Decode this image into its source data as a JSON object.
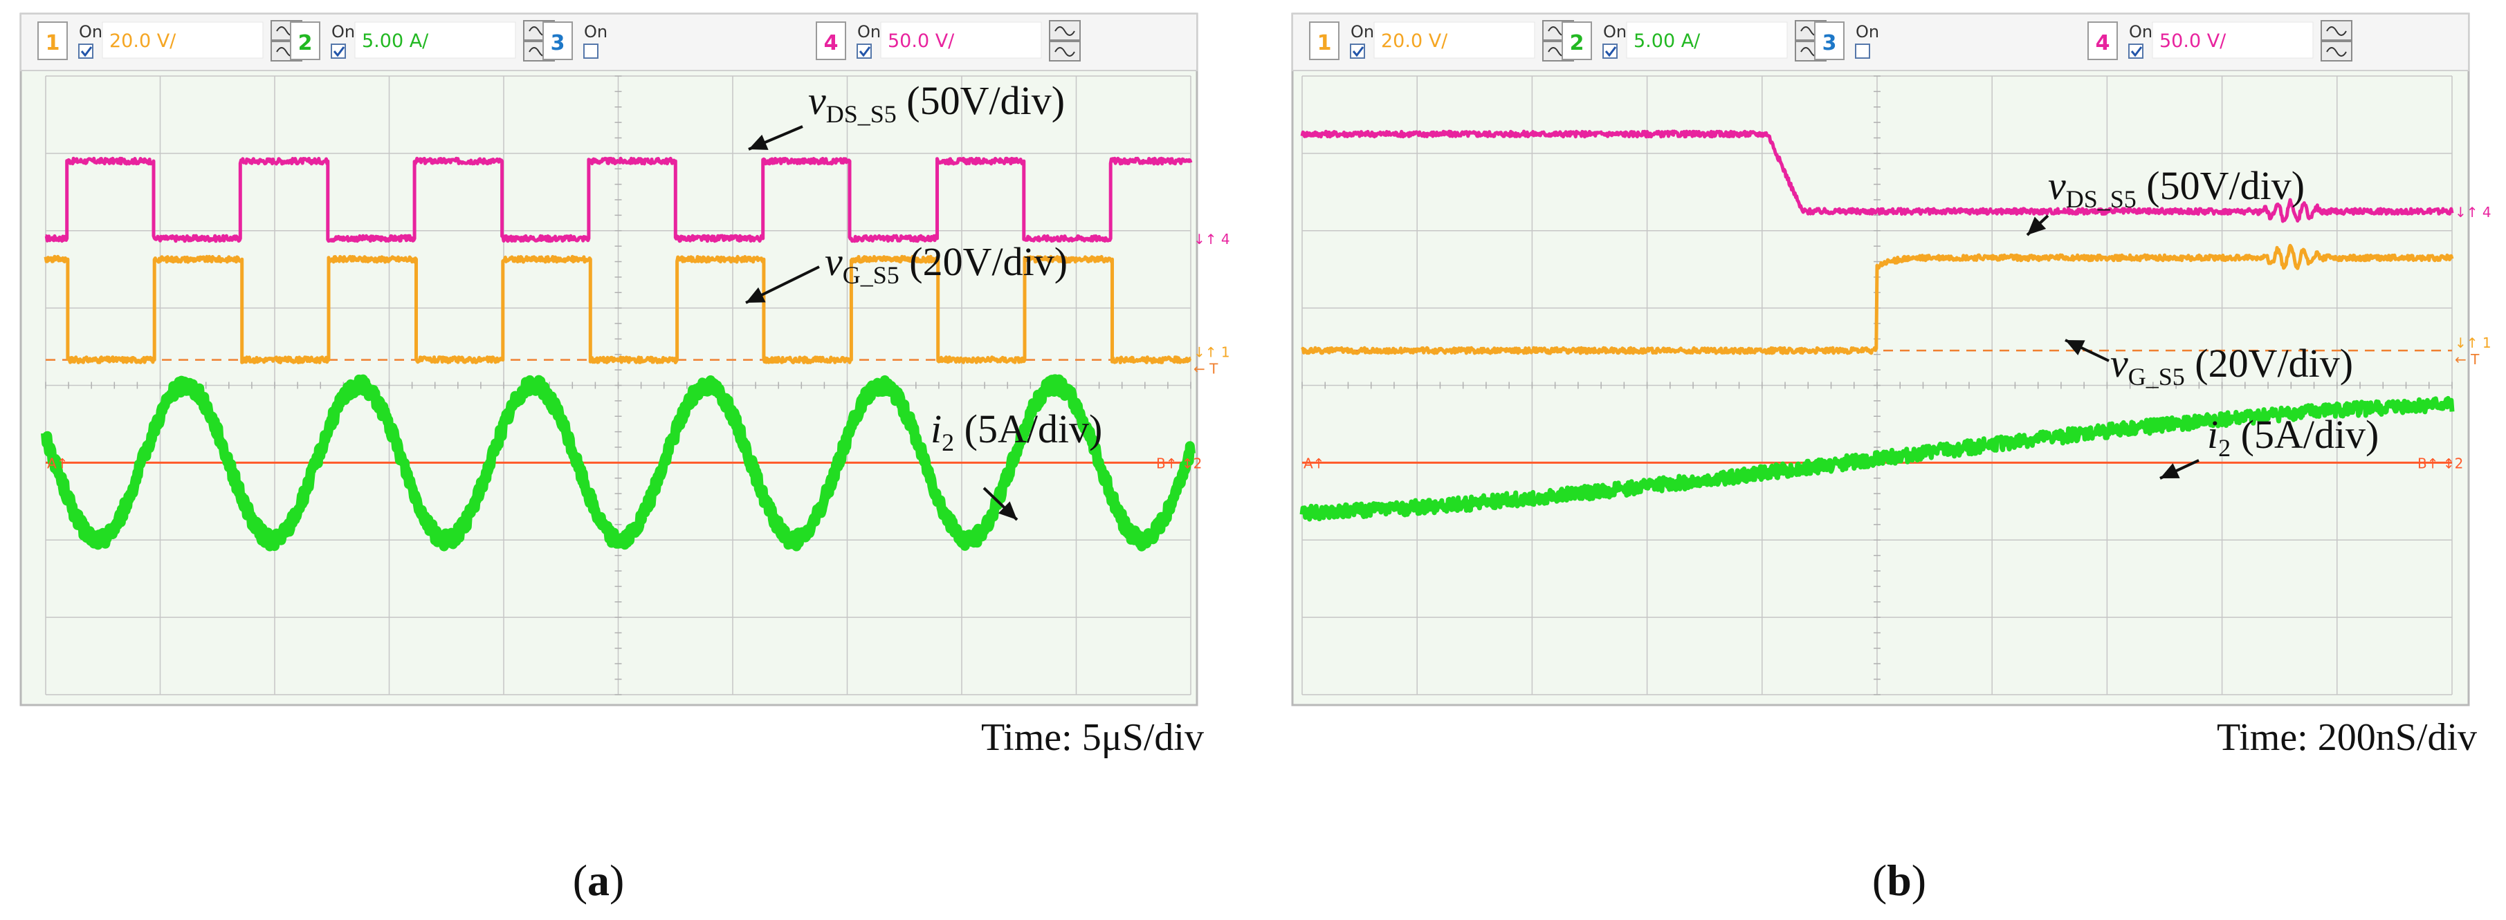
{
  "panels": [
    {
      "id": "a",
      "label": "(a)",
      "time_label": "Time: 5μS/div",
      "header": [
        {
          "num": "1",
          "on": "On",
          "value": "20.0 V/",
          "color": "#f5a623",
          "has_value": true
        },
        {
          "num": "2",
          "on": "On",
          "value": "5.00 A/",
          "color": "#22b822",
          "has_value": true
        },
        {
          "num": "3",
          "on": "On",
          "value": "",
          "color": "#1e78c8",
          "has_value": false
        },
        {
          "num": "4",
          "on": "On",
          "value": "50.0 V/",
          "color": "#e8239e",
          "has_value": true
        }
      ],
      "annotations": [
        {
          "symbol": "v",
          "sub": "DS_S5",
          "scale": "(50V/div)"
        },
        {
          "symbol": "v",
          "sub": "G_S5",
          "scale": "(20V/div)"
        },
        {
          "symbol": "i",
          "sub": "2",
          "scale": "(5A/div)"
        }
      ],
      "right_markers": [
        "↓↑ 4",
        "↓↑ 1",
        "← T",
        "B↑ ↕2"
      ],
      "left_markers": [
        "A↑"
      ]
    },
    {
      "id": "b",
      "label": "(b)",
      "time_label": "Time: 200nS/div",
      "header": [
        {
          "num": "1",
          "on": "On",
          "value": "20.0 V/",
          "color": "#f5a623",
          "has_value": true
        },
        {
          "num": "2",
          "on": "On",
          "value": "5.00 A/",
          "color": "#22b822",
          "has_value": true
        },
        {
          "num": "3",
          "on": "On",
          "value": "",
          "color": "#1e78c8",
          "has_value": false
        },
        {
          "num": "4",
          "on": "On",
          "value": "50.0 V/",
          "color": "#e8239e",
          "has_value": true
        }
      ],
      "annotations": [
        {
          "symbol": "v",
          "sub": "DS_S5",
          "scale": "(50V/div)"
        },
        {
          "symbol": "v",
          "sub": "G_S5",
          "scale": "(20V/div)"
        },
        {
          "symbol": "i",
          "sub": "2",
          "scale": "(5A/div)"
        }
      ],
      "right_markers": [
        "↓↑ 4",
        "↓↑ 1",
        "← T",
        "B↑ ↕2"
      ],
      "left_markers": [
        "A↑"
      ]
    }
  ],
  "chart_data": [
    {
      "type": "line",
      "title": "(a)",
      "xlabel": "Time: 5μS/div",
      "ylabel": "",
      "x_divisions": 10,
      "y_divisions": 8,
      "grid": true,
      "series": [
        {
          "name": "vDS_S5",
          "channel": 4,
          "scale": "50V/div",
          "color": "#e8239e",
          "shape": "square",
          "period_div": 1.52,
          "high_div": 1.0,
          "low_div": 0.0,
          "phase_div": 0.18,
          "duty": 0.5
        },
        {
          "name": "vG_S5",
          "channel": 1,
          "scale": "20V/div",
          "color": "#f5a623",
          "shape": "square",
          "period_div": 1.52,
          "high_div": 1.3,
          "low_div": 0.0,
          "phase_div": 0.95,
          "duty": 0.5
        },
        {
          "name": "i2",
          "channel": 2,
          "scale": "5A/div",
          "color": "#22dd22",
          "shape": "sine",
          "period_div": 1.52,
          "amplitude_div": 1.0,
          "offset_div": 0.0,
          "peak_div": 1.22
        }
      ]
    },
    {
      "type": "line",
      "title": "(b)",
      "xlabel": "Time: 200nS/div",
      "ylabel": "",
      "x_divisions": 10,
      "y_divisions": 8,
      "grid": true,
      "series": [
        {
          "name": "vDS_S5",
          "channel": 4,
          "scale": "50V/div",
          "color": "#e8239e",
          "shape": "falling_edge",
          "high_div": 1.0,
          "low_div": 0.0,
          "fall_start_div": 4.05,
          "fall_end_div": 4.35,
          "ringing_div": [
            8.3,
            8.9
          ]
        },
        {
          "name": "vG_S5",
          "channel": 1,
          "scale": "20V/div",
          "color": "#f5a623",
          "shape": "rising_edge",
          "high_div": 1.2,
          "low_div": 0.0,
          "rise_div": 5.0,
          "ringing_div": [
            8.3,
            8.9
          ]
        },
        {
          "name": "i2",
          "channel": 2,
          "scale": "5A/div",
          "color": "#22dd22",
          "shape": "ramp",
          "start_div": -0.65,
          "end_div": 0.75,
          "midpoint_div": 5.0
        }
      ]
    }
  ]
}
